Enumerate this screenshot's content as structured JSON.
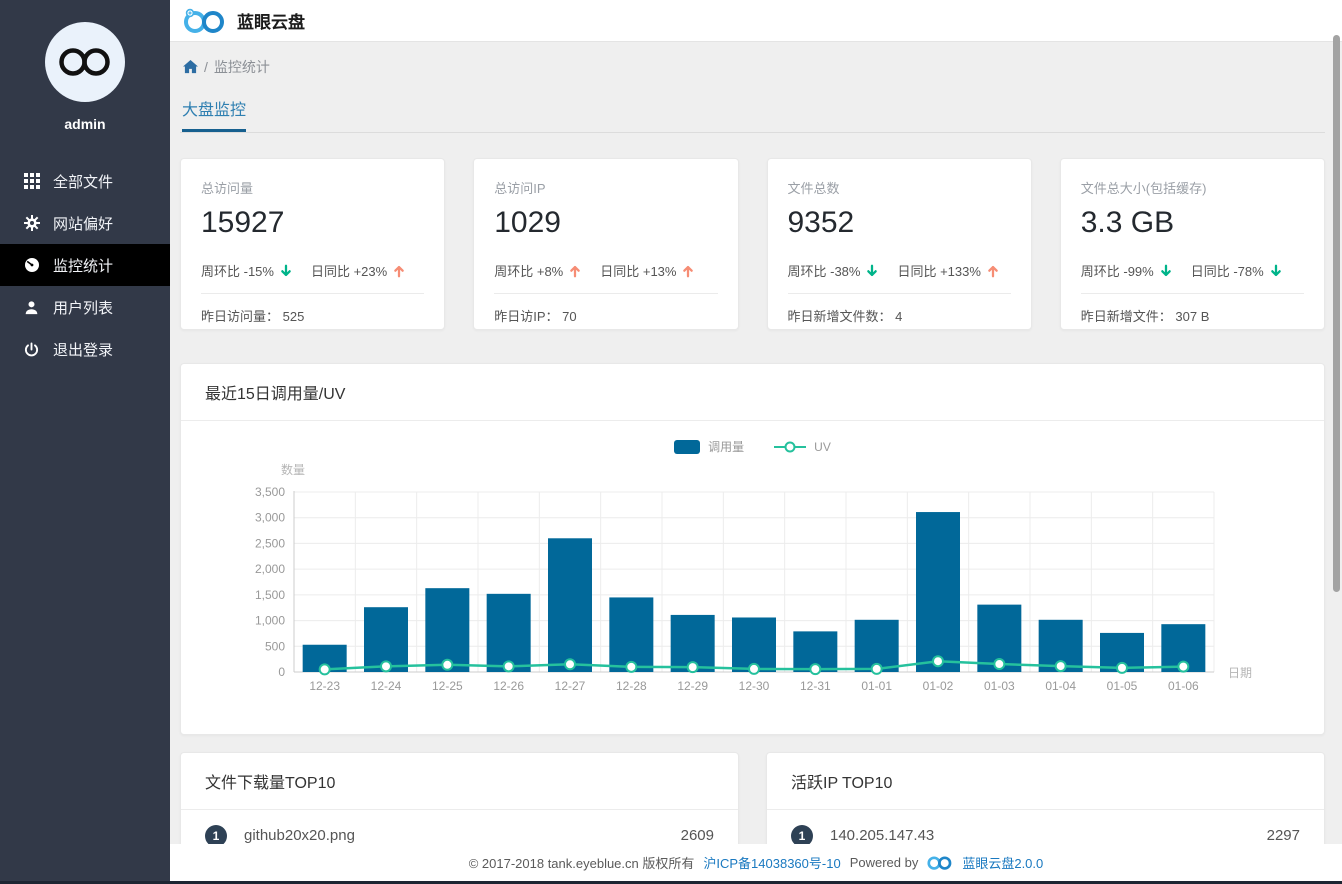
{
  "app": {
    "title": "蓝眼云盘"
  },
  "sidebar": {
    "username": "admin",
    "items": [
      {
        "label": "全部文件",
        "icon": "grid-icon",
        "active": false
      },
      {
        "label": "网站偏好",
        "icon": "gear-icon",
        "active": false
      },
      {
        "label": "监控统计",
        "icon": "dashboard-icon",
        "active": true
      },
      {
        "label": "用户列表",
        "icon": "user-icon",
        "active": false
      },
      {
        "label": "退出登录",
        "icon": "power-icon",
        "active": false
      }
    ]
  },
  "breadcrumb": {
    "home_icon": "home-icon",
    "separator": "/",
    "current": "监控统计"
  },
  "tabs": [
    {
      "label": "大盘监控",
      "active": true
    }
  ],
  "stat_cards": [
    {
      "title": "总访问量",
      "value": "15927",
      "week": "周环比 -15%",
      "week_dir": "down",
      "day": "日同比 +23%",
      "day_dir": "up",
      "footer_label": "昨日访问量：",
      "footer_value": "525"
    },
    {
      "title": "总访问IP",
      "value": "1029",
      "week": "周环比 +8%",
      "week_dir": "up",
      "day": "日同比 +13%",
      "day_dir": "up",
      "footer_label": "昨日访IP：",
      "footer_value": "70"
    },
    {
      "title": "文件总数",
      "value": "9352",
      "week": "周环比 -38%",
      "week_dir": "down",
      "day": "日同比 +133%",
      "day_dir": "up",
      "footer_label": "昨日新增文件数：",
      "footer_value": "4"
    },
    {
      "title": "文件总大小(包括缓存)",
      "value": "3.3 GB",
      "week": "周环比 -99%",
      "week_dir": "down",
      "day": "日同比 -78%",
      "day_dir": "down",
      "footer_label": "昨日新增文件：",
      "footer_value": "307 B"
    }
  ],
  "chart_card": {
    "title": "最近15日调用量/UV"
  },
  "chart_data": {
    "type": "bar+line",
    "title": "最近15日调用量/UV",
    "categories": [
      "12-23",
      "12-24",
      "12-25",
      "12-26",
      "12-27",
      "12-28",
      "12-29",
      "12-30",
      "12-31",
      "01-01",
      "01-02",
      "01-03",
      "01-04",
      "01-05",
      "01-06"
    ],
    "series": [
      {
        "name": "调用量",
        "type": "bar",
        "color": "#016899",
        "values": [
          530,
          1260,
          1630,
          1520,
          2600,
          1450,
          1110,
          1060,
          790,
          1015,
          3110,
          1310,
          1015,
          760,
          930
        ]
      },
      {
        "name": "UV",
        "type": "line",
        "color": "#25c19d",
        "values": [
          50,
          110,
          140,
          110,
          150,
          100,
          95,
          60,
          55,
          60,
          210,
          155,
          115,
          80,
          105
        ]
      }
    ],
    "xlabel": "日期",
    "ylabel": "数量",
    "ylim": [
      0,
      3500
    ],
    "ytick_step": 500,
    "grid": true,
    "legend_position": "top-center"
  },
  "top_lists": [
    {
      "title": "文件下载量TOP10",
      "items": [
        {
          "rank": "1",
          "label": "github20x20.png",
          "value": "2609"
        }
      ]
    },
    {
      "title": "活跃IP TOP10",
      "items": [
        {
          "rank": "1",
          "label": "140.205.147.43",
          "value": "2297"
        }
      ]
    }
  ],
  "footer": {
    "copyright": "© 2017-2018 tank.eyeblue.cn 版权所有",
    "icp": "沪ICP备14038360号-10",
    "powered_by": "Powered by",
    "brand_version": "蓝眼云盘2.0.0"
  },
  "colors": {
    "sidebar_bg": "#323948",
    "active_item_bg": "#000000",
    "bar": "#016899",
    "uv_line": "#25c19d",
    "trend_up": "#f68d75",
    "trend_down": "#00b48a",
    "tab_blue": "#2e7fb1",
    "link_blue": "#1a79c0",
    "badge": "#2e4155"
  }
}
